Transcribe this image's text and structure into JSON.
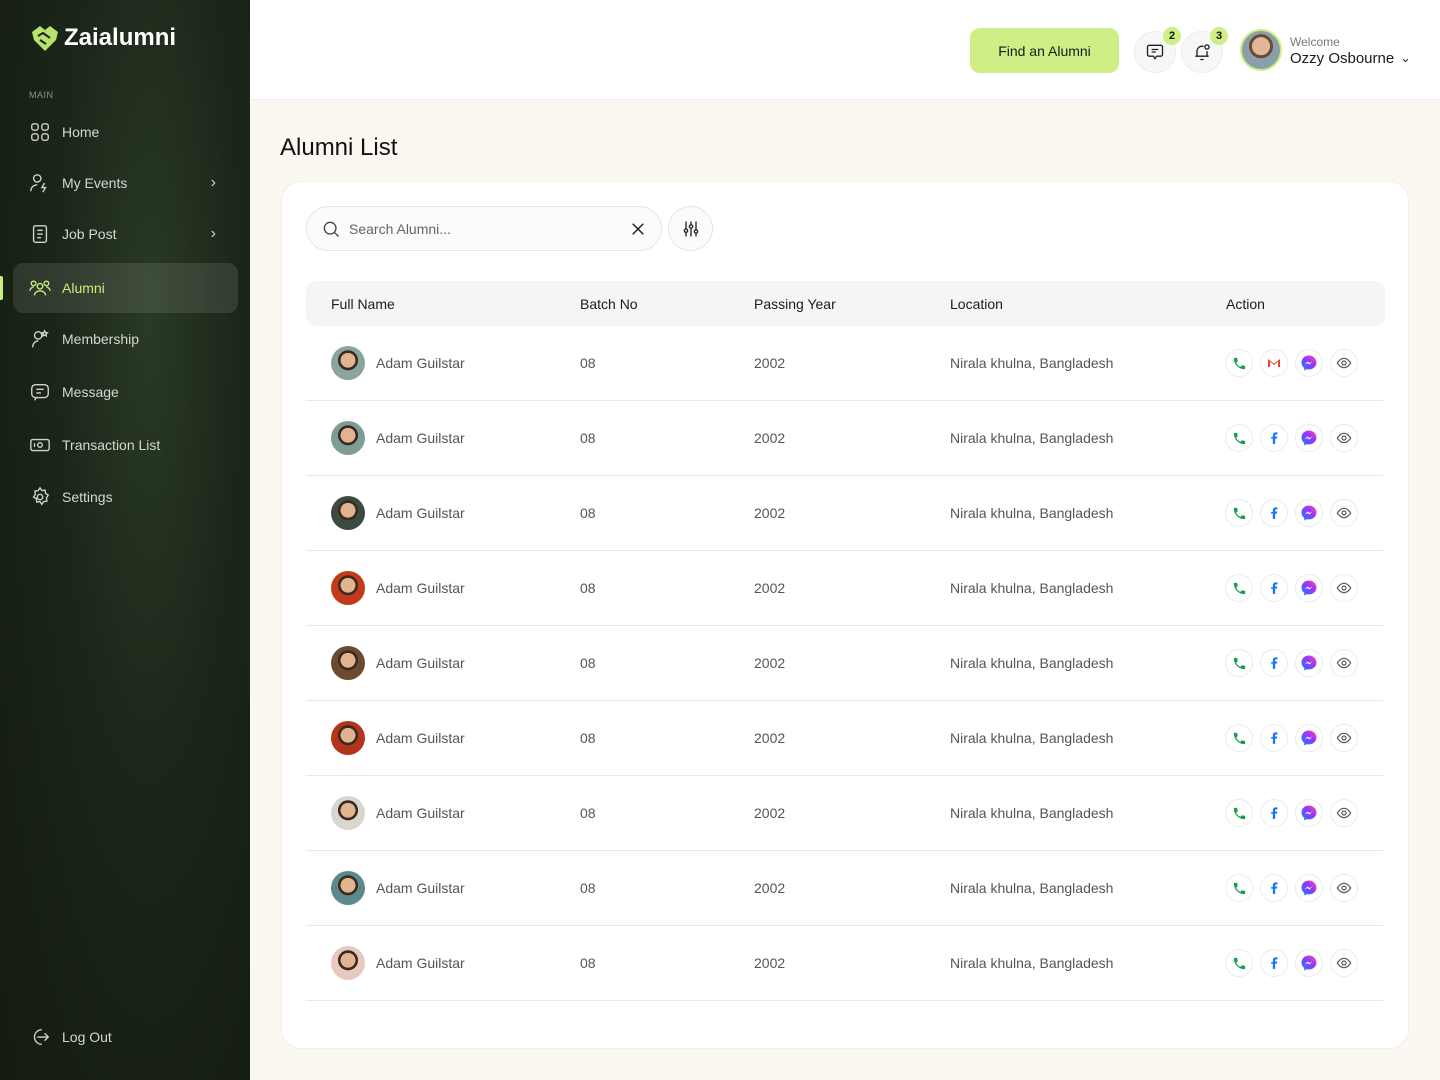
{
  "brand": {
    "name": "Zaialumni",
    "accent": "#cfee85"
  },
  "sidebar": {
    "section": "MAIN",
    "items": [
      {
        "label": "Home",
        "icon": "grid-icon"
      },
      {
        "label": "My Events",
        "icon": "user-bolt-icon",
        "chevron": true
      },
      {
        "label": "Job Post",
        "icon": "document-icon",
        "chevron": true
      },
      {
        "label": "Alumni",
        "icon": "users-icon",
        "active": true
      },
      {
        "label": "Membership",
        "icon": "user-star-icon"
      },
      {
        "label": "Message",
        "icon": "message-icon"
      },
      {
        "label": "Transaction List",
        "icon": "money-icon"
      },
      {
        "label": "Settings",
        "icon": "gear-icon"
      }
    ],
    "logout": "Log Out"
  },
  "header": {
    "find_button": "Find an Alumni",
    "messages_count": "2",
    "notifications_count": "3",
    "welcome": "Welcome",
    "username": "Ozzy Osbourne"
  },
  "page": {
    "title": "Alumni List",
    "search_placeholder": "Search Alumni..."
  },
  "table": {
    "columns": [
      "Full Name",
      "Batch No",
      "Passing Year",
      "Location",
      "Action"
    ],
    "rows": [
      {
        "name": "Adam Guilstar",
        "batch": "08",
        "year": "2002",
        "location": "Nirala khulna, Bangladesh",
        "second_action": "gmail"
      },
      {
        "name": "Adam Guilstar",
        "batch": "08",
        "year": "2002",
        "location": "Nirala khulna, Bangladesh",
        "second_action": "facebook"
      },
      {
        "name": "Adam Guilstar",
        "batch": "08",
        "year": "2002",
        "location": "Nirala khulna, Bangladesh",
        "second_action": "facebook"
      },
      {
        "name": "Adam Guilstar",
        "batch": "08",
        "year": "2002",
        "location": "Nirala khulna, Bangladesh",
        "second_action": "facebook"
      },
      {
        "name": "Adam Guilstar",
        "batch": "08",
        "year": "2002",
        "location": "Nirala khulna, Bangladesh",
        "second_action": "facebook"
      },
      {
        "name": "Adam Guilstar",
        "batch": "08",
        "year": "2002",
        "location": "Nirala khulna, Bangladesh",
        "second_action": "facebook"
      },
      {
        "name": "Adam Guilstar",
        "batch": "08",
        "year": "2002",
        "location": "Nirala khulna, Bangladesh",
        "second_action": "facebook"
      },
      {
        "name": "Adam Guilstar",
        "batch": "08",
        "year": "2002",
        "location": "Nirala khulna, Bangladesh",
        "second_action": "facebook"
      },
      {
        "name": "Adam Guilstar",
        "batch": "08",
        "year": "2002",
        "location": "Nirala khulna, Bangladesh",
        "second_action": "facebook"
      }
    ]
  }
}
